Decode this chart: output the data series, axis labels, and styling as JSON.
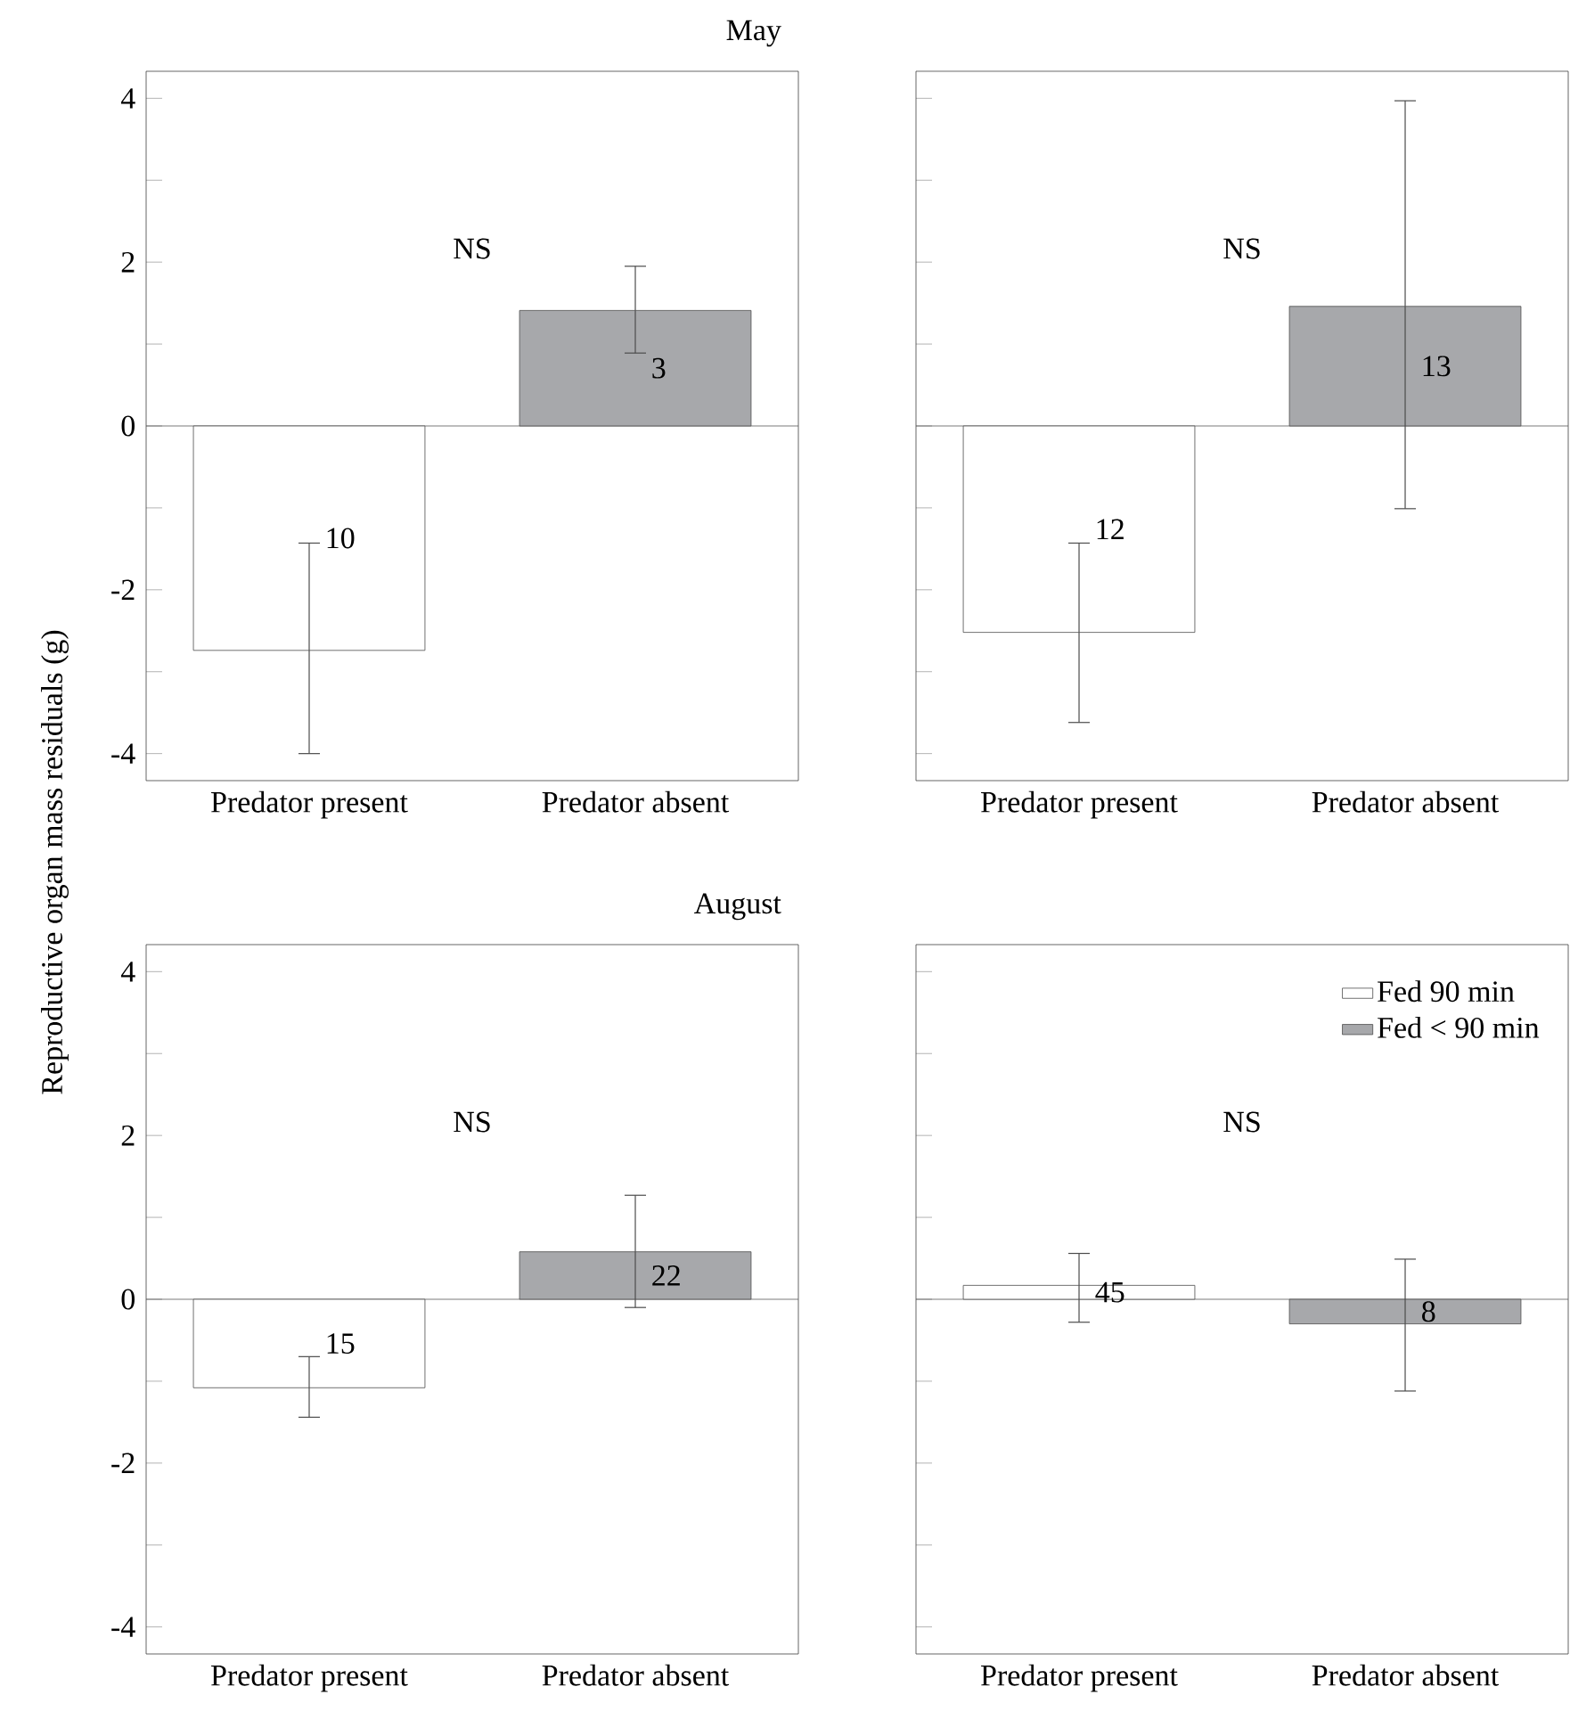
{
  "chart_data": [
    {
      "type": "bar",
      "title": "May",
      "ylabel": "Reproductive organ mass residuals (g)",
      "categories": [
        "Predator present",
        "Predator absent"
      ],
      "ylim": [
        -4.33,
        4.33
      ],
      "yticks": [
        -4,
        {
          "value": -3,
          "label": null
        },
        -2,
        {
          "value": -1,
          "label": null
        },
        0,
        {
          "value": 1,
          "label": null
        },
        2,
        {
          "value": 3,
          "label": null
        },
        4
      ],
      "series": [
        {
          "color": "#ffffff",
          "values": [
            -2.74,
            null
          ],
          "errors": [
            [
              -4.0,
              -1.43
            ],
            null
          ]
        },
        {
          "color": "#a7a8ab",
          "values": [
            null,
            1.41
          ],
          "errors": [
            null,
            [
              0.89,
              1.95
            ]
          ]
        }
      ],
      "annotations": [
        "NS",
        "10",
        "3"
      ]
    },
    {
      "type": "bar",
      "categories": [
        "Predator present",
        "Predator absent"
      ],
      "ylim": [
        -4.33,
        4.33
      ],
      "yticks": [
        -4,
        {
          "value": -3,
          "label": null
        },
        -2,
        {
          "value": -1,
          "label": null
        },
        0,
        {
          "value": 1,
          "label": null
        },
        2,
        {
          "value": 3,
          "label": null
        },
        4
      ],
      "tick_labels": "x",
      "series": [
        {
          "color": "#ffffff",
          "values": [
            -2.52,
            null
          ],
          "errors": [
            [
              -3.62,
              -1.43
            ],
            null
          ]
        },
        {
          "color": "#a7a8ab",
          "values": [
            null,
            1.46
          ],
          "errors": [
            null,
            [
              -1.01,
              3.97
            ]
          ]
        }
      ],
      "annotations": [
        "NS",
        "12",
        "13"
      ]
    },
    {
      "type": "bar",
      "title": "August",
      "categories": [
        "Predator present",
        "Predator absent"
      ],
      "ylim": [
        -4.33,
        4.33
      ],
      "yticks": [
        -4,
        {
          "value": -3,
          "label": null
        },
        -2,
        {
          "value": -1,
          "label": null
        },
        0,
        {
          "value": 1,
          "label": null
        },
        2,
        {
          "value": 3,
          "label": null
        },
        4
      ],
      "series": [
        {
          "color": "#ffffff",
          "values": [
            -1.08,
            null
          ],
          "errors": [
            [
              -1.44,
              -0.7
            ],
            null
          ]
        },
        {
          "color": "#a7a8ab",
          "values": [
            null,
            0.58
          ],
          "errors": [
            null,
            [
              -0.1,
              1.27
            ]
          ]
        }
      ],
      "annotations": [
        "NS",
        "15",
        "22"
      ]
    },
    {
      "type": "bar",
      "categories": [
        "Predator present",
        "Predator absent"
      ],
      "ylim": [
        -4.33,
        4.33
      ],
      "yticks": [
        -4,
        {
          "value": -3,
          "label": null
        },
        -2,
        {
          "value": -1,
          "label": null
        },
        0,
        {
          "value": 1,
          "label": null
        },
        2,
        {
          "value": 3,
          "label": null
        },
        4
      ],
      "tick_labels": "x",
      "legend": "top right",
      "series": [
        {
          "name": "Fed 90 min",
          "color": "#ffffff",
          "values": [
            0.17,
            null
          ],
          "errors": [
            [
              -0.28,
              0.56
            ],
            null
          ]
        },
        {
          "name": "Fed < 90 min",
          "color": "#a7a8ab",
          "values": [
            null,
            -0.3
          ],
          "errors": [
            null,
            [
              -1.12,
              0.49
            ]
          ]
        }
      ],
      "annotations": [
        "NS",
        "45",
        "8"
      ]
    }
  ]
}
